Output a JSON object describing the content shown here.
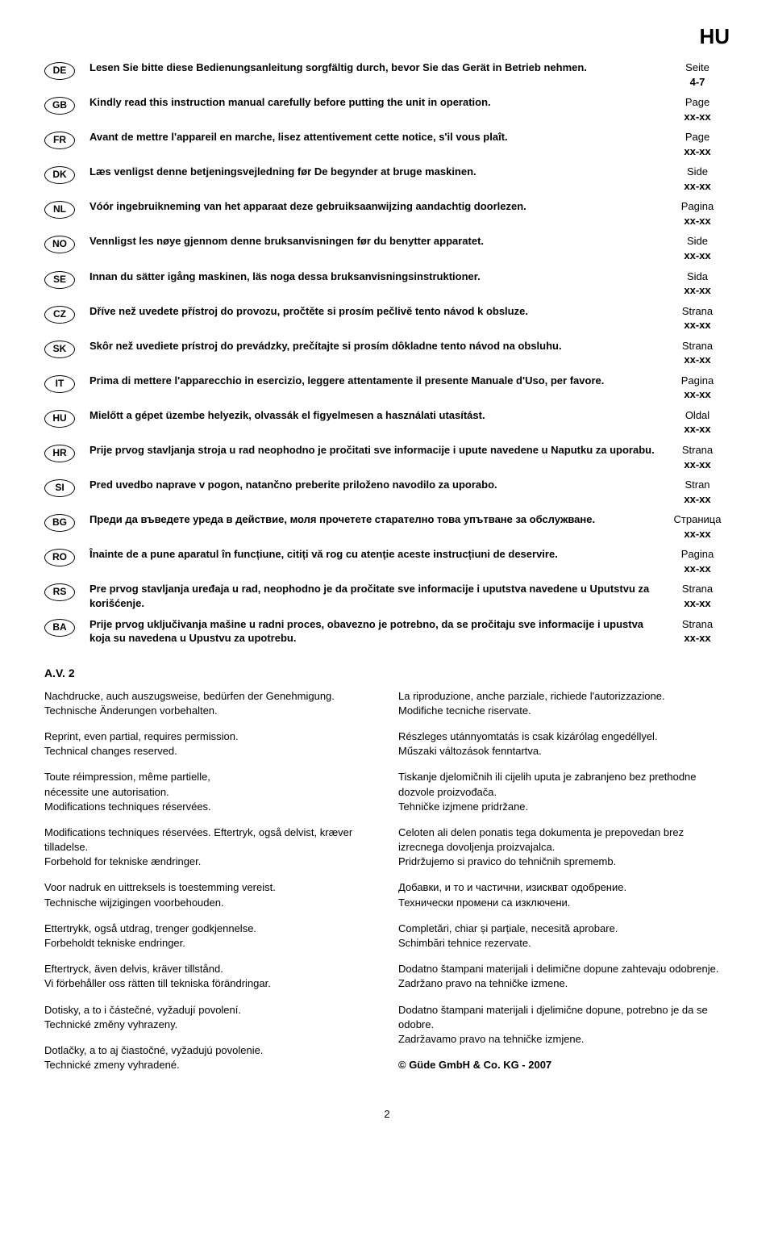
{
  "top_code": "HU",
  "languages": [
    {
      "code": "DE",
      "text": "Lesen Sie bitte diese Bedienungsanleitung sorgfältig durch, bevor Sie das Gerät in Betrieb nehmen.",
      "page_label": "Seite",
      "page_range": "4-7"
    },
    {
      "code": "GB",
      "text": "Kindly read this instruction manual carefully before putting the unit in operation.",
      "page_label": "Page",
      "page_range": "xx-xx"
    },
    {
      "code": "FR",
      "text": "Avant de mettre l'appareil en marche, lisez attentivement cette notice, s'il vous plaît.",
      "page_label": "Page",
      "page_range": "xx-xx"
    },
    {
      "code": "DK",
      "text": "Læs venligst denne betjeningsvejledning før De begynder at bruge maskinen.",
      "page_label": "Side",
      "page_range": "xx-xx"
    },
    {
      "code": "NL",
      "text": "Vóór ingebruikneming van het apparaat deze gebruiksaanwijzing aandachtig doorlezen.",
      "page_label": "Pagina",
      "page_range": "xx-xx"
    },
    {
      "code": "NO",
      "text": "Vennligst les nøye gjennom denne bruksanvisningen før du benytter apparatet.",
      "page_label": "Side",
      "page_range": "xx-xx"
    },
    {
      "code": "SE",
      "text": "Innan du sätter igång maskinen, läs noga dessa bruksanvisningsinstruktioner.",
      "page_label": "Sida",
      "page_range": "xx-xx"
    },
    {
      "code": "CZ",
      "text": "Dříve než uvedete přístroj do provozu, pročtěte si prosím pečlivě tento návod k obsluze.",
      "page_label": "Strana",
      "page_range": "xx-xx"
    },
    {
      "code": "SK",
      "text": "Skôr než uvediete prístroj do prevádzky, prečítajte si prosím dôkladne tento návod na obsluhu.",
      "page_label": "Strana",
      "page_range": "xx-xx"
    },
    {
      "code": "IT",
      "text": "Prima di mettere l'apparecchio in esercizio, leggere attentamente il presente Manuale d'Uso, per favore.",
      "page_label": "Pagina",
      "page_range": "xx-xx"
    },
    {
      "code": "HU",
      "text": "Mielőtt a gépet üzembe helyezik, olvassák el figyelmesen a használati utasítást.",
      "page_label": "Oldal",
      "page_range": "xx-xx"
    },
    {
      "code": "HR",
      "text": "Prije prvog stavljanja stroja u rad neophodno je pročitati sve informacije i upute navedene u Naputku za uporabu.",
      "page_label": "Strana",
      "page_range": "xx-xx"
    },
    {
      "code": "SI",
      "text": "Pred uvedbo naprave v pogon, natančno preberite priloženo navodilo za uporabo.",
      "page_label": "Stran",
      "page_range": "xx-xx"
    },
    {
      "code": "BG",
      "text": "Преди да въведете уреда в действие, моля прочетете старателно това упътване за обслужване.",
      "page_label": "Страница",
      "page_range": "xx-xx"
    },
    {
      "code": "RO",
      "text": "Înainte de a pune aparatul în funcțiune, citiți vă rog cu atenție aceste instrucțiuni de deservire.",
      "page_label": "Pagina",
      "page_range": "xx-xx"
    },
    {
      "code": "RS",
      "text": "Pre prvog stavljanja uređaja u rad, neophodno je da pročitate sve informacije i uputstva navedene u Uputstvu za korišćenje.",
      "page_label": "Strana",
      "page_range": "xx-xx"
    },
    {
      "code": "BA",
      "text": "Prije prvog uključivanja mašine u radni proces,  obavezno je potrebno, da se pročitaju sve informacije i upustva koja su navedena u Upustvu za upotrebu.",
      "page_label": "Strana",
      "page_range": "xx-xx"
    }
  ],
  "av_label": "A.V. 2",
  "notes_left": [
    "Nachdrucke, auch auszugsweise, bedürfen der Genehmigung.\nTechnische Änderungen vorbehalten.",
    "Reprint, even partial, requires permission.\nTechnical changes reserved.",
    "Toute réimpression, même partielle,\nnécessite une autorisation.\nModifications techniques réservées.",
    "Modifications techniques réservées. Eftertryk, også delvist, kræver tilladelse.\nForbehold for tekniske ændringer.",
    "Voor nadruk en uittreksels is toestemming vereist.\nTechnische wijzigingen voorbehouden.",
    "Ettertrykk, også utdrag, trenger godkjennelse.\nForbeholdt tekniske endringer.",
    "Eftertryck, även delvis, kräver tillstånd.\nVi förbehåller oss rätten till tekniska förändringar.",
    "Dotisky, a to i částečné, vyžadují povolení.\nTechnické změny vyhrazeny.",
    "Dotlačky, a to aj čiastočné, vyžadujú povolenie.\nTechnické zmeny vyhradené."
  ],
  "notes_right": [
    "La riproduzione, anche parziale, richiede l'autorizzazione.\nModifiche tecniche riservate.",
    "Részleges utánnyomtatás is csak kizárólag engedéllyel.\nMűszaki változások fenntartva.",
    "Tiskanje djelomičnih ili cijelih uputa je zabranjeno bez prethodne dozvole proizvođača.\nTehničke izjmene pridržane.",
    "Celoten ali delen ponatis tega dokumenta je prepovedan brez izrecnega dovoljenja proizvajalca.\nPridržujemo si pravico do tehničnih sprememb.",
    "Добавки, и то и частични, изискват одобрение.\nТехнически промени са изключени.",
    "Completări, chiar și parțiale, necesită aprobare.\nSchimbări tehnice rezervate.",
    "Dodatno štampani materijali i delimične dopune zahtevaju odobrenje.\nZadržano pravo na tehničke izmene.",
    "Dodatno štampani materijali  i djelimične dopune, potrebno je da se odobre.\nZadržavamo pravo na tehničke izmjene.",
    "© Güde GmbH & Co. KG - 2007"
  ],
  "notes_right_bold_last": true,
  "page_number": "2"
}
